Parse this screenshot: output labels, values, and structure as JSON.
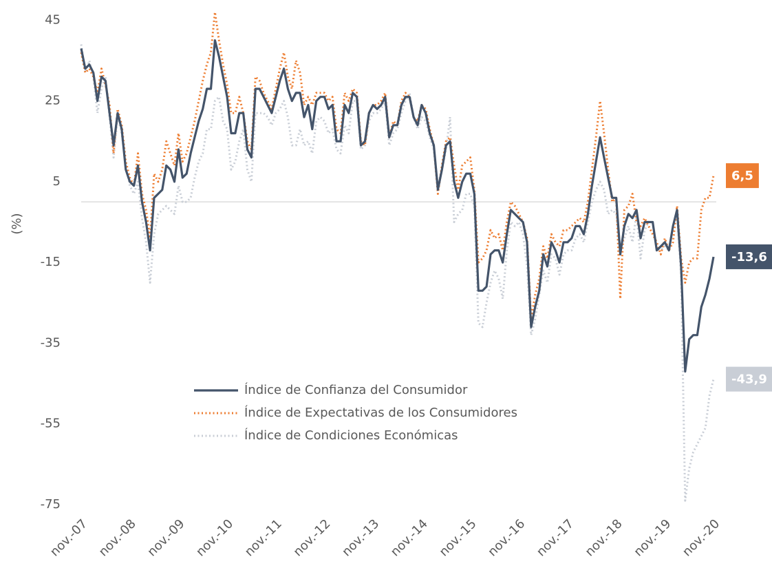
{
  "chart_data": {
    "type": "line",
    "y_label": "(%)",
    "categories": [
      "nov.-07",
      null,
      null,
      null,
      null,
      null,
      null,
      null,
      null,
      null,
      null,
      null,
      "nov.-08",
      null,
      null,
      null,
      null,
      null,
      null,
      null,
      null,
      null,
      null,
      null,
      "nov.-09",
      null,
      null,
      null,
      null,
      null,
      null,
      null,
      null,
      null,
      null,
      null,
      "nov.-10",
      null,
      null,
      null,
      null,
      null,
      null,
      null,
      null,
      null,
      null,
      null,
      "nov.-11",
      null,
      null,
      null,
      null,
      null,
      null,
      null,
      null,
      null,
      null,
      null,
      "nov.-12",
      null,
      null,
      null,
      null,
      null,
      null,
      null,
      null,
      null,
      null,
      null,
      "nov.-13",
      null,
      null,
      null,
      null,
      null,
      null,
      null,
      null,
      null,
      null,
      null,
      "nov.-14",
      null,
      null,
      null,
      null,
      null,
      null,
      null,
      null,
      null,
      null,
      null,
      "nov.-15",
      null,
      null,
      null,
      null,
      null,
      null,
      null,
      null,
      null,
      null,
      null,
      "nov.-16",
      null,
      null,
      null,
      null,
      null,
      null,
      null,
      null,
      null,
      null,
      null,
      "nov.-17",
      null,
      null,
      null,
      null,
      null,
      null,
      null,
      null,
      null,
      null,
      null,
      "nov.-18",
      null,
      null,
      null,
      null,
      null,
      null,
      null,
      null,
      null,
      null,
      null,
      "nov.-19",
      null,
      null,
      null,
      null,
      null,
      null,
      null,
      null,
      null,
      null,
      null,
      "nov.-20"
    ],
    "series": [
      {
        "name": "Índice de Confianza del Consumidor",
        "color": "#44546a",
        "line_style": "solid",
        "end_label": "-13,6",
        "values": [
          38,
          33,
          34,
          32,
          25,
          31,
          30,
          22,
          14,
          22,
          18,
          8,
          5,
          4,
          9,
          0,
          -5,
          -12,
          1,
          2,
          3,
          9,
          8,
          5,
          13,
          6,
          7,
          12,
          16,
          20,
          23,
          28,
          28,
          40,
          36,
          31,
          26,
          17,
          17,
          22,
          22,
          13,
          11,
          28,
          28,
          26,
          24,
          22,
          26,
          30,
          33,
          28,
          25,
          27,
          27,
          21,
          24,
          18,
          25,
          26,
          26,
          23,
          24,
          15,
          15,
          24,
          22,
          27,
          26,
          14,
          15,
          22,
          24,
          23,
          24,
          26,
          16,
          19,
          19,
          24,
          26,
          26,
          21,
          19,
          24,
          22,
          17,
          14,
          3,
          8,
          14,
          15,
          5,
          1,
          5,
          7,
          7,
          2,
          -22,
          -22,
          -21,
          -13,
          -12,
          -12,
          -15,
          -8,
          -2,
          -3,
          -4,
          -5,
          -10,
          -31,
          -26,
          -22,
          -13,
          -16,
          -10,
          -12,
          -15,
          -10,
          -10,
          -9,
          -6,
          -6,
          -8,
          -3,
          4,
          10,
          16,
          11,
          6,
          1,
          1,
          -13,
          -6,
          -3,
          -4,
          -2,
          -9,
          -5,
          -5,
          -5,
          -12,
          -11,
          -10,
          -12,
          -6,
          -2,
          -16,
          -42,
          -34,
          -33,
          -33,
          -26,
          -23,
          -19,
          -13.6
        ]
      },
      {
        "name": "Índice de Expectativas de los Consumidores",
        "color": "#ed7d31",
        "line_style": "dotted",
        "end_label": "6,5",
        "values": [
          37,
          32,
          33,
          31,
          27,
          33,
          29,
          24,
          12,
          23,
          19,
          10,
          6,
          4,
          12,
          2,
          -2,
          -9,
          7,
          5,
          8,
          15,
          12,
          9,
          17,
          10,
          12,
          16,
          20,
          25,
          30,
          34,
          37,
          47,
          40,
          34,
          29,
          22,
          22,
          26,
          22,
          15,
          13,
          31,
          30,
          27,
          25,
          23,
          28,
          33,
          37,
          31,
          28,
          35,
          32,
          24,
          26,
          24,
          27,
          27,
          27,
          25,
          26,
          18,
          17,
          27,
          25,
          28,
          27,
          15,
          14,
          22,
          24,
          24,
          25,
          27,
          16,
          20,
          19,
          25,
          27,
          26,
          21,
          20,
          24,
          23,
          18,
          14,
          2,
          9,
          15,
          16,
          9,
          3,
          9,
          10,
          11,
          3,
          -15,
          -14,
          -12,
          -7,
          -9,
          -8,
          -12,
          -5,
          0,
          -1,
          -3,
          -5,
          -9,
          -29,
          -23,
          -19,
          -11,
          -14,
          -8,
          -10,
          -11,
          -7,
          -7,
          -6,
          -5,
          -4,
          -5,
          0,
          8,
          16,
          25,
          17,
          8,
          0,
          1,
          -24,
          -2,
          -1,
          2,
          -5,
          -6,
          -4,
          -6,
          -8,
          -10,
          -13,
          -9,
          -12,
          -10,
          -1,
          -14,
          -20,
          -15,
          -14,
          -14,
          -2,
          1,
          1,
          6.5
        ]
      },
      {
        "name": "Índice de Condiciones Económicas",
        "color": "#c9ced6",
        "line_style": "dotted",
        "end_label": "-43,9",
        "values": [
          39,
          32,
          35,
          31,
          22,
          28,
          31,
          21,
          11,
          21,
          17,
          9,
          4,
          2,
          5,
          -4,
          -10,
          -20,
          -8,
          -3,
          -2,
          -1,
          -2,
          -3,
          4,
          0,
          0,
          1,
          6,
          10,
          12,
          18,
          18,
          25,
          26,
          20,
          18,
          8,
          10,
          15,
          18,
          8,
          5,
          22,
          22,
          22,
          21,
          19,
          22,
          23,
          25,
          21,
          14,
          14,
          18,
          14,
          15,
          12,
          20,
          21,
          20,
          17,
          18,
          13,
          12,
          19,
          17,
          25,
          25,
          13,
          14,
          20,
          22,
          22,
          23,
          25,
          14,
          17,
          18,
          22,
          25,
          27,
          21,
          18,
          21,
          20,
          16,
          13,
          4,
          8,
          13,
          21,
          -5,
          -3,
          -2,
          2,
          2,
          -1,
          -30,
          -31,
          -25,
          -20,
          -17,
          -19,
          -24,
          -12,
          -5,
          -6,
          -5,
          -8,
          -16,
          -33,
          -29,
          -23,
          -17,
          -20,
          -13,
          -14,
          -18,
          -13,
          -12,
          -12,
          -9,
          -8,
          -10,
          -5,
          0,
          3,
          5,
          3,
          -3,
          -2,
          -3,
          -12,
          -9,
          -6,
          -10,
          -3,
          -14,
          -7,
          -5,
          -5,
          -12,
          -12,
          -11,
          -12,
          -6,
          -3,
          -18,
          -74,
          -66,
          -62,
          -60,
          -58,
          -56,
          -48,
          -43.9
        ]
      }
    ],
    "ylim": [
      -75,
      50
    ],
    "yticks": [
      45,
      25,
      5,
      -15,
      -35,
      -55,
      -75
    ]
  }
}
